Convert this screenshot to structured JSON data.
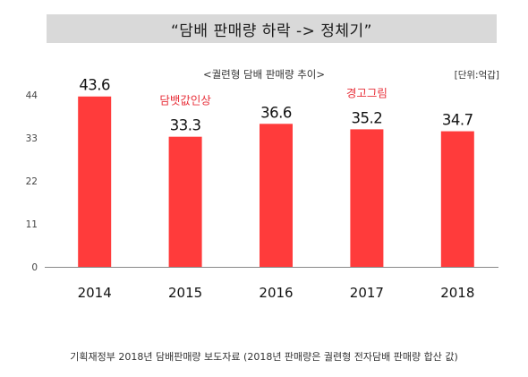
{
  "title": "“담배 판매량 하락 -> 정체기”",
  "source_note": "기획재정부 2018년 담배판매량 보도자료 (2018년 판매량은 궐련형 전자담배 판매량 합산 값)",
  "colors": {
    "bar": "#ff3b3b",
    "annotation": "#e8313b",
    "title_band": "#d9d9d9",
    "axis": "#888888"
  },
  "chart_data": {
    "type": "bar",
    "title": "<궐련형 담배 판매량 추이>",
    "unit_label": "[단위:억갑]",
    "categories": [
      "2014",
      "2015",
      "2016",
      "2017",
      "2018"
    ],
    "values": [
      43.6,
      33.3,
      36.6,
      35.2,
      34.7
    ],
    "value_labels": [
      "43.6",
      "33.3",
      "36.6",
      "35.2",
      "34.7"
    ],
    "annotations": [
      {
        "category": "2015",
        "text": "담뱃값인상"
      },
      {
        "category": "2017",
        "text": "경고그림"
      }
    ],
    "yticks": [
      0,
      11,
      22,
      33,
      44
    ],
    "ylim": [
      0,
      44
    ],
    "xlabel": "",
    "ylabel": "",
    "grid": false,
    "legend": "none"
  }
}
